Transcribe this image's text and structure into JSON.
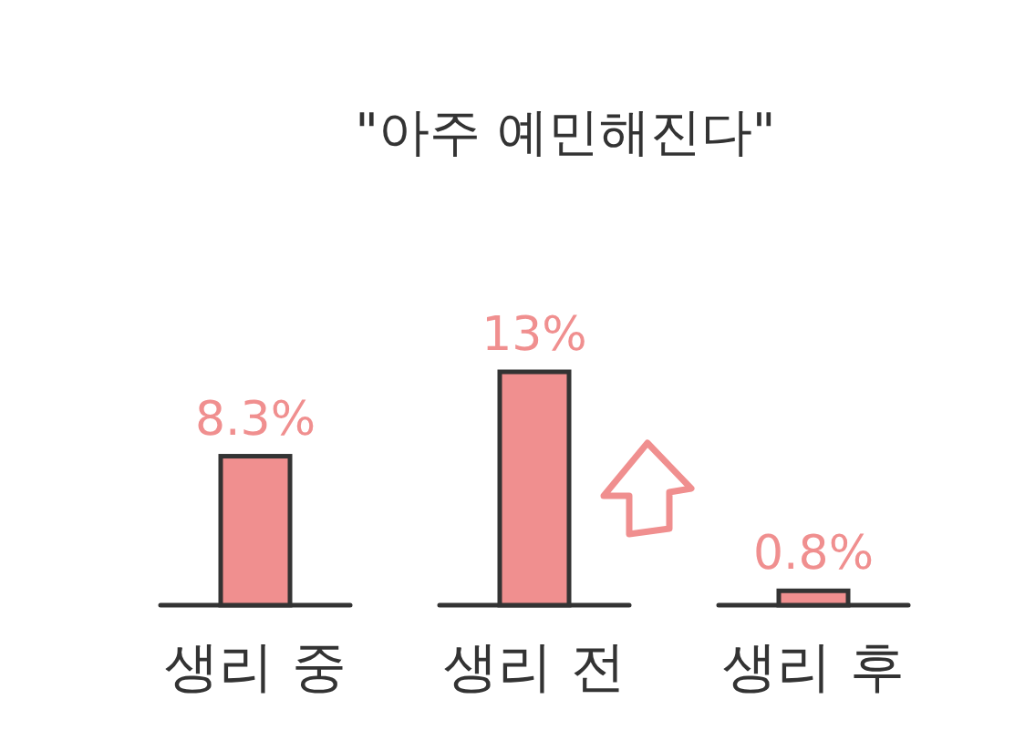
{
  "chart_data": {
    "type": "bar",
    "title": "\"아주 예민해진다\"",
    "categories": [
      "생리 중",
      "생리 전",
      "생리 후"
    ],
    "values": [
      8.3,
      13,
      0.8
    ],
    "value_labels": [
      "8.3%",
      "13%",
      "0.8%"
    ],
    "color": "#f08f8f"
  }
}
